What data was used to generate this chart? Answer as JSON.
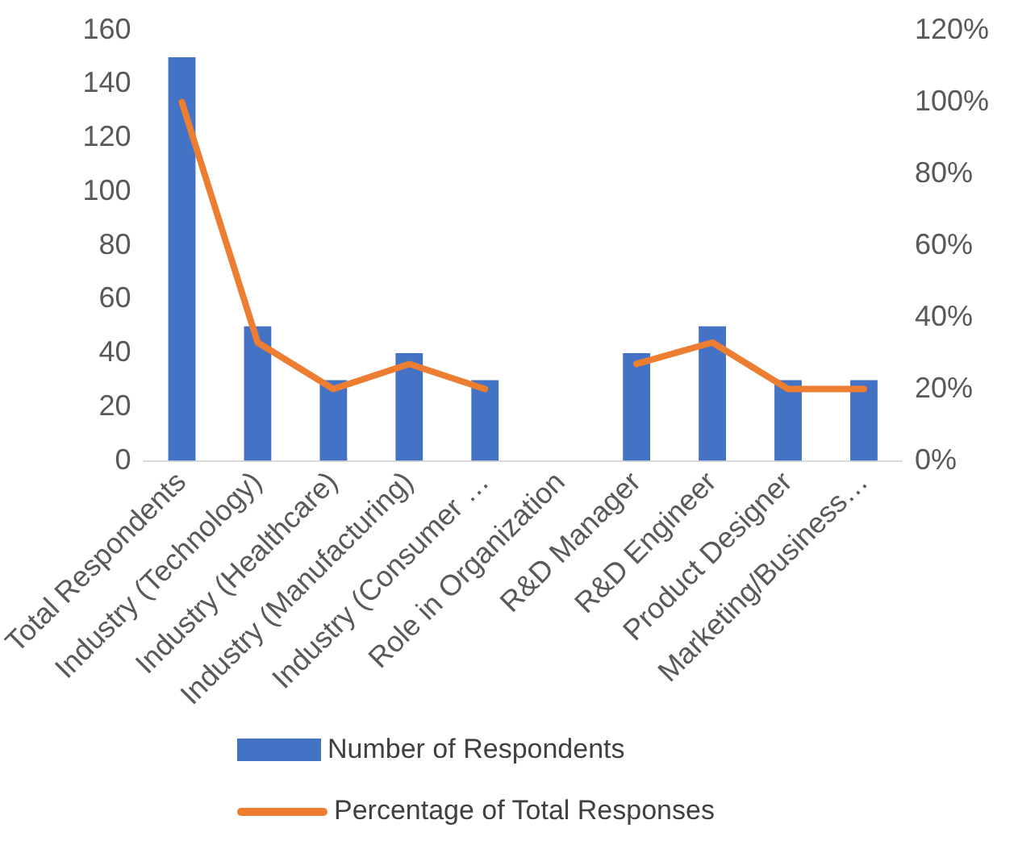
{
  "chart_data": {
    "type": "bar",
    "categories": [
      "Total Respondents",
      "Industry (Technology)",
      "Industry (Healthcare)",
      "Industry (Manufacturing)",
      "Industry (Consumer …",
      "Role in Organization",
      "R&D Manager",
      "R&D Engineer",
      "Product Designer",
      "Marketing/Business…"
    ],
    "series": [
      {
        "name": "Number of Respondents",
        "color": "#4472c4",
        "values": [
          150,
          50,
          30,
          40,
          30,
          null,
          40,
          50,
          30,
          30
        ]
      },
      {
        "name": "Percentage of Total Responses",
        "type": "line",
        "axis": "y2",
        "color": "#ed7d31",
        "values": [
          100,
          33,
          20,
          27,
          20,
          null,
          27,
          33,
          20,
          20
        ]
      }
    ],
    "ylim": [
      0,
      160
    ],
    "yticks": [
      0,
      20,
      40,
      60,
      80,
      100,
      120,
      140,
      160
    ],
    "y2lim": [
      0,
      120
    ],
    "y2ticks": [
      {
        "value": 0,
        "label": "0%"
      },
      {
        "value": 20,
        "label": "20%"
      },
      {
        "value": 40,
        "label": "40%"
      },
      {
        "value": 60,
        "label": "60%"
      },
      {
        "value": 80,
        "label": "80%"
      },
      {
        "value": 100,
        "label": "100%"
      },
      {
        "value": 120,
        "label": "120%"
      }
    ],
    "grid": false,
    "legend": "bottom",
    "marker": "none",
    "line_style": "solid"
  }
}
